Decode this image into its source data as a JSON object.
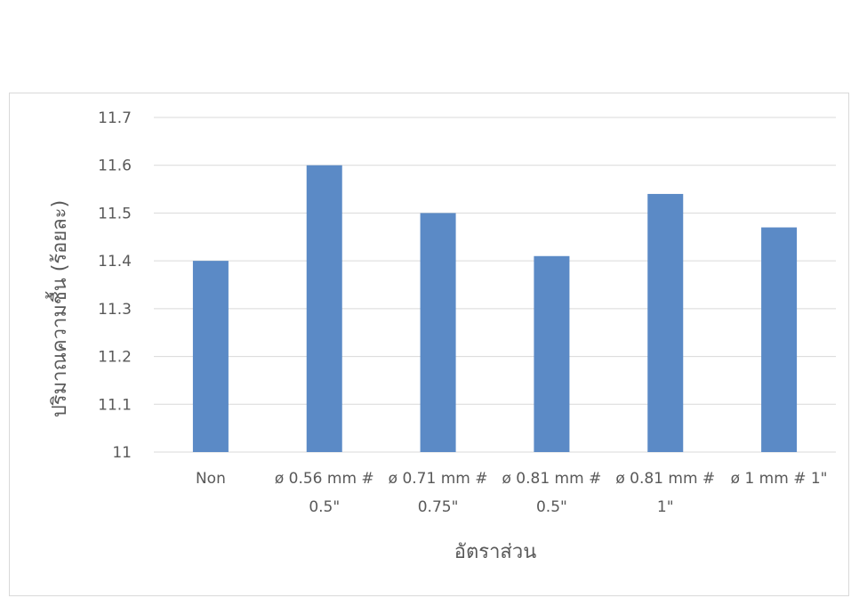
{
  "chart_data": {
    "type": "bar",
    "title": "",
    "xlabel": "อัตราส่วน",
    "ylabel": "ปริมาณความชื้น (ร้อยละ)",
    "ylim": [
      11,
      11.7
    ],
    "yticks": [
      "11",
      "11.1",
      "11.2",
      "11.3",
      "11.4",
      "11.5",
      "11.6",
      "11.7"
    ],
    "grid": true,
    "legend": "none",
    "categories": [
      [
        "Non"
      ],
      [
        "ø 0.56 mm #",
        "0.5\""
      ],
      [
        "ø 0.71 mm #",
        "0.75\""
      ],
      [
        "ø 0.81 mm #",
        "0.5\""
      ],
      [
        "ø 0.81 mm #",
        "1\""
      ],
      [
        "ø 1 mm # 1\""
      ]
    ],
    "values": [
      11.4,
      11.6,
      11.5,
      11.41,
      11.54,
      11.47
    ],
    "bar_color": "#5b8ac6"
  }
}
